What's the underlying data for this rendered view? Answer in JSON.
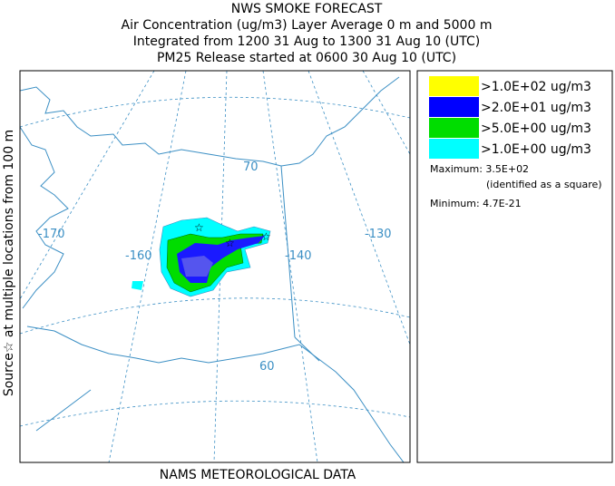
{
  "header": {
    "lines": [
      "NWS SMOKE FORECAST",
      "Air Concentration (ug/m3) Layer Average    0 m and  5000 m",
      "Integrated from 1200 31 Aug to 1300 31 Aug 10 (UTC)",
      "PM25 Release started at 0600 30 Aug 10 (UTC)"
    ]
  },
  "side_label": "Source☆ at multiple locations   from   100 m",
  "footer": "NAMS METEOROLOGICAL DATA",
  "legend": {
    "items": [
      {
        "label": ">1.0E+02 ug/m3",
        "color": "#ffff00"
      },
      {
        "label": ">2.0E+01 ug/m3",
        "color": "#0000ff"
      },
      {
        "label": ">5.0E+00 ug/m3",
        "color": "#00dd00"
      },
      {
        "label": ">1.0E+00 ug/m3",
        "color": "#00ffff"
      }
    ]
  },
  "stats": {
    "maximum": "Maximum: 3.5E+02",
    "maximum_note": "(identified as a square)",
    "minimum": "Minimum: 4.7E-21"
  },
  "map": {
    "labels": [
      "-170",
      "-160",
      "-140",
      "-130",
      "70",
      "60"
    ]
  }
}
